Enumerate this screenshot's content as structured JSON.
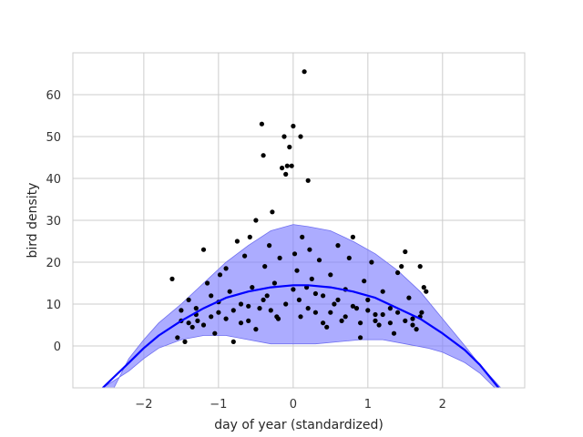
{
  "chart_data": {
    "type": "scatter",
    "title": "",
    "xlabel": "day of year (standardized)",
    "ylabel": "bird density",
    "xlim": [
      -2.95,
      3.1
    ],
    "ylim": [
      -10,
      70
    ],
    "xticks": [
      -2,
      -1,
      0,
      1,
      2
    ],
    "yticks": [
      0,
      10,
      20,
      30,
      40,
      50,
      60
    ],
    "grid": true,
    "legend": "none",
    "colors": {
      "points": "#000000",
      "line": "#0000ff",
      "band": "#8080ff",
      "grid": "#cccccc"
    },
    "mean_curve": [
      [
        -2.55,
        -10
      ],
      [
        -2.2,
        -4.0
      ],
      [
        -2.0,
        -0.5
      ],
      [
        -1.8,
        2.5
      ],
      [
        -1.5,
        6.0
      ],
      [
        -1.2,
        9.0
      ],
      [
        -0.9,
        11.5
      ],
      [
        -0.6,
        13.0
      ],
      [
        -0.3,
        14.0
      ],
      [
        0.0,
        14.5
      ],
      [
        0.2,
        14.5
      ],
      [
        0.5,
        14.0
      ],
      [
        0.8,
        13.0
      ],
      [
        1.1,
        11.5
      ],
      [
        1.4,
        9.0
      ],
      [
        1.7,
        6.5
      ],
      [
        2.0,
        3.0
      ],
      [
        2.3,
        -1.0
      ],
      [
        2.5,
        -4.5
      ],
      [
        2.75,
        -10
      ]
    ],
    "band_upper": [
      [
        -2.4,
        -10
      ],
      [
        -2.2,
        -3.0
      ],
      [
        -2.0,
        1.5
      ],
      [
        -1.8,
        5.5
      ],
      [
        -1.5,
        10.0
      ],
      [
        -1.2,
        15.0
      ],
      [
        -0.9,
        20.0
      ],
      [
        -0.6,
        24.0
      ],
      [
        -0.3,
        27.5
      ],
      [
        0.0,
        29.0
      ],
      [
        0.2,
        28.5
      ],
      [
        0.5,
        27.5
      ],
      [
        0.8,
        25.0
      ],
      [
        1.1,
        22.0
      ],
      [
        1.4,
        18.0
      ],
      [
        1.7,
        13.0
      ],
      [
        2.0,
        6.5
      ],
      [
        2.3,
        0.0
      ],
      [
        2.5,
        -4.5
      ],
      [
        2.78,
        -10
      ]
    ],
    "band_lower": [
      [
        -2.55,
        -10
      ],
      [
        -2.2,
        -6.0
      ],
      [
        -2.0,
        -3.0
      ],
      [
        -1.8,
        -0.5
      ],
      [
        -1.5,
        1.5
      ],
      [
        -1.2,
        2.5
      ],
      [
        -0.9,
        2.5
      ],
      [
        -0.6,
        1.5
      ],
      [
        -0.3,
        0.5
      ],
      [
        0.0,
        0.5
      ],
      [
        0.3,
        0.5
      ],
      [
        0.6,
        1.0
      ],
      [
        0.9,
        1.5
      ],
      [
        1.2,
        1.5
      ],
      [
        1.5,
        0.5
      ],
      [
        1.8,
        -0.5
      ],
      [
        2.0,
        -1.5
      ],
      [
        2.3,
        -4.0
      ],
      [
        2.5,
        -6.5
      ],
      [
        2.7,
        -10
      ]
    ],
    "points": [
      [
        -1.62,
        16.0
      ],
      [
        -1.55,
        2.0
      ],
      [
        -1.5,
        8.5
      ],
      [
        -1.45,
        1.0
      ],
      [
        -1.4,
        11.0
      ],
      [
        -1.35,
        4.5
      ],
      [
        -1.3,
        9.0
      ],
      [
        -1.28,
        6.0
      ],
      [
        -1.2,
        23.0
      ],
      [
        -1.15,
        15.0
      ],
      [
        -1.1,
        12.0
      ],
      [
        -1.05,
        3.0
      ],
      [
        -1.0,
        8.0
      ],
      [
        -0.98,
        17.0
      ],
      [
        -0.9,
        18.5
      ],
      [
        -0.85,
        13.0
      ],
      [
        -0.8,
        1.0
      ],
      [
        -0.75,
        25.0
      ],
      [
        -0.7,
        10.0
      ],
      [
        -0.65,
        21.5
      ],
      [
        -0.6,
        6.0
      ],
      [
        -0.58,
        26.0
      ],
      [
        -0.55,
        14.0
      ],
      [
        -0.5,
        30.0
      ],
      [
        -0.45,
        9.0
      ],
      [
        -0.42,
        53.0
      ],
      [
        -0.4,
        45.5
      ],
      [
        -0.38,
        19.0
      ],
      [
        -0.35,
        12.0
      ],
      [
        -0.32,
        24.0
      ],
      [
        -0.28,
        32.0
      ],
      [
        -0.25,
        15.0
      ],
      [
        -0.22,
        7.0
      ],
      [
        -0.18,
        21.0
      ],
      [
        -0.15,
        42.5
      ],
      [
        -0.12,
        50.0
      ],
      [
        -0.1,
        41.0
      ],
      [
        -0.08,
        43.0
      ],
      [
        -0.05,
        47.5
      ],
      [
        -0.02,
        43.0
      ],
      [
        0.0,
        52.5
      ],
      [
        0.02,
        22.0
      ],
      [
        0.05,
        18.0
      ],
      [
        0.08,
        11.0
      ],
      [
        0.1,
        50.0
      ],
      [
        0.12,
        26.0
      ],
      [
        0.15,
        65.5
      ],
      [
        0.18,
        14.0
      ],
      [
        0.2,
        39.5
      ],
      [
        0.22,
        23.0
      ],
      [
        0.25,
        16.0
      ],
      [
        0.3,
        8.0
      ],
      [
        0.35,
        20.5
      ],
      [
        0.4,
        12.0
      ],
      [
        0.45,
        4.5
      ],
      [
        0.5,
        17.0
      ],
      [
        0.55,
        10.0
      ],
      [
        0.6,
        24.0
      ],
      [
        0.65,
        6.0
      ],
      [
        0.7,
        13.5
      ],
      [
        0.75,
        21.0
      ],
      [
        0.8,
        26.0
      ],
      [
        0.85,
        9.0
      ],
      [
        0.9,
        2.0
      ],
      [
        0.95,
        15.5
      ],
      [
        1.0,
        11.0
      ],
      [
        1.05,
        20.0
      ],
      [
        1.1,
        7.5
      ],
      [
        1.15,
        5.0
      ],
      [
        1.2,
        13.0
      ],
      [
        1.3,
        9.0
      ],
      [
        1.35,
        3.0
      ],
      [
        1.4,
        17.5
      ],
      [
        1.45,
        19.0
      ],
      [
        1.5,
        22.5
      ],
      [
        1.55,
        11.5
      ],
      [
        1.6,
        6.5
      ],
      [
        1.65,
        4.0
      ],
      [
        1.7,
        19.0
      ],
      [
        1.72,
        8.0
      ],
      [
        1.75,
        14.0
      ],
      [
        1.78,
        13.0
      ],
      [
        -1.5,
        6.0
      ],
      [
        -1.4,
        5.5
      ],
      [
        -1.3,
        7.5
      ],
      [
        -1.2,
        5.0
      ],
      [
        -1.1,
        7.0
      ],
      [
        -1.0,
        10.5
      ],
      [
        -0.9,
        6.5
      ],
      [
        -0.8,
        8.5
      ],
      [
        -0.7,
        5.5
      ],
      [
        -0.6,
        9.5
      ],
      [
        -0.5,
        4.0
      ],
      [
        -0.4,
        11.0
      ],
      [
        -0.3,
        8.5
      ],
      [
        -0.2,
        6.5
      ],
      [
        -0.1,
        10.0
      ],
      [
        0.0,
        13.5
      ],
      [
        0.1,
        7.0
      ],
      [
        0.2,
        9.0
      ],
      [
        0.3,
        12.5
      ],
      [
        0.4,
        5.5
      ],
      [
        0.5,
        8.0
      ],
      [
        0.6,
        11.0
      ],
      [
        0.7,
        7.0
      ],
      [
        0.8,
        9.5
      ],
      [
        0.9,
        5.5
      ],
      [
        1.0,
        8.5
      ],
      [
        1.1,
        6.0
      ],
      [
        1.2,
        7.5
      ],
      [
        1.3,
        5.5
      ],
      [
        1.4,
        8.0
      ],
      [
        1.5,
        6.0
      ],
      [
        1.6,
        5.0
      ],
      [
        1.7,
        7.0
      ]
    ]
  }
}
